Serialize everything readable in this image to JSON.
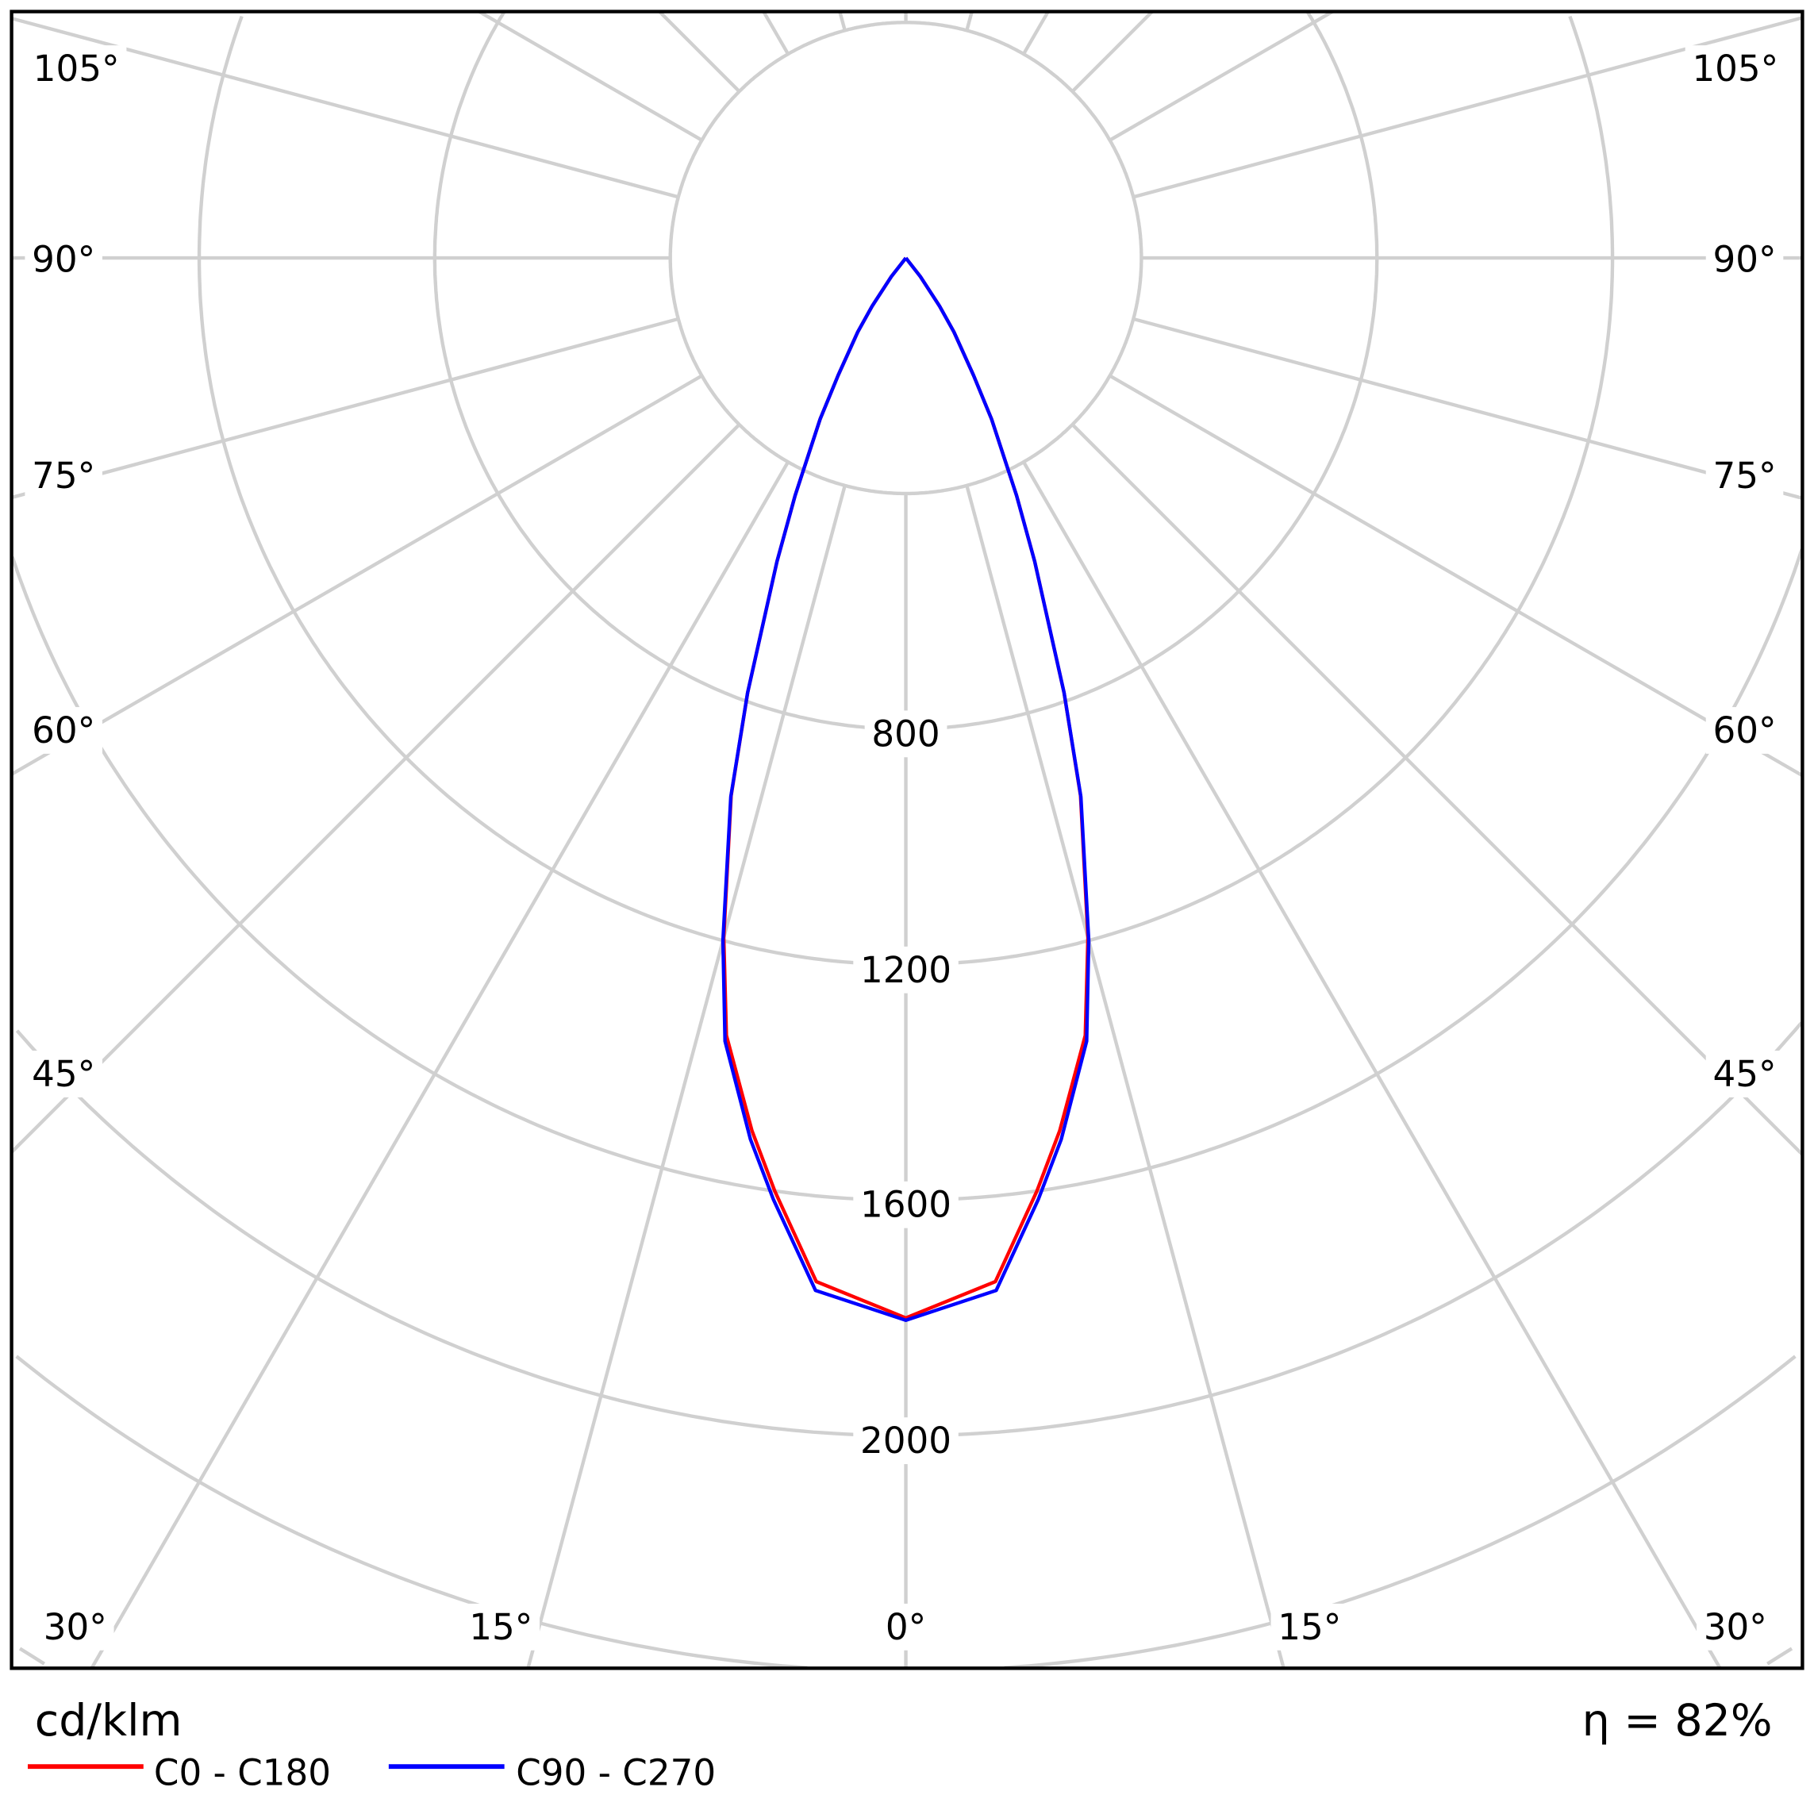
{
  "chart_data": {
    "type": "polar",
    "unit_label": "cd/klm",
    "efficiency_label": "η = 82%",
    "radial_ticks": [
      400,
      800,
      1200,
      1600,
      2000,
      2400,
      2800,
      3200
    ],
    "radial_tick_labels": [
      "800",
      "1200",
      "1600",
      "2000"
    ],
    "angle_labels": {
      "a0": "0°",
      "a15": "15°",
      "a30": "30°",
      "a45": "45°",
      "a60": "60°",
      "a75": "75°",
      "a90": "90°",
      "a105": "105°"
    },
    "angle_step_deg": 15,
    "series": [
      {
        "name": "C0 - C180",
        "color": "#ff0000",
        "angles": [
          0,
          5,
          8,
          10,
          13,
          15,
          18,
          20,
          23,
          25,
          28,
          30,
          33,
          35,
          38,
          40
        ],
        "values": [
          1800,
          1745,
          1600,
          1505,
          1355,
          1195,
          960,
          785,
          560,
          445,
          310,
          230,
          150,
          100,
          40,
          0
        ]
      },
      {
        "name": "C90 - C270",
        "color": "#0000ff",
        "angles": [
          0,
          5,
          8,
          10,
          13,
          15,
          18,
          20,
          23,
          25,
          28,
          30,
          33,
          35,
          38,
          40
        ],
        "values": [
          1804,
          1760,
          1615,
          1520,
          1365,
          1200,
          962,
          786,
          560,
          445,
          310,
          230,
          150,
          100,
          40,
          0
        ]
      }
    ]
  }
}
